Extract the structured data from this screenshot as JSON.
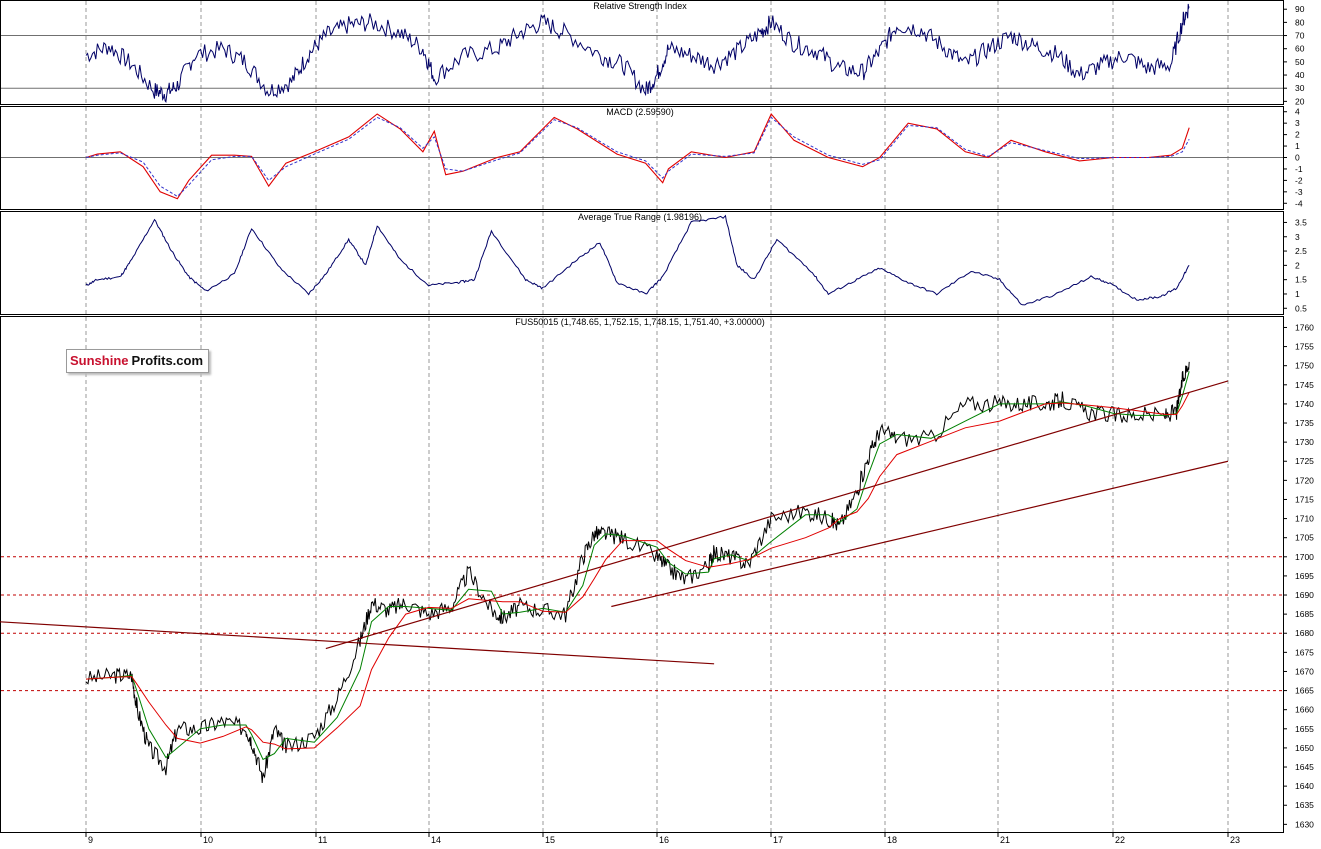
{
  "colors": {
    "price": "#000000",
    "ma_fast": "#008000",
    "ma_slow": "#e00000",
    "indicator": "#000066",
    "macd_signal": "#3333cc",
    "trendline": "#800000",
    "support": "#c00000",
    "grid": "#999999",
    "level": "#707070"
  },
  "logo": {
    "part1": "Sunshine",
    "part2": "Profits.com"
  },
  "x_axis": {
    "days": [
      "9",
      "10",
      "11",
      "14",
      "15",
      "16",
      "17",
      "18",
      "21",
      "22",
      "23"
    ]
  },
  "chart_data": [
    {
      "type": "line",
      "title": "Relative Strength Index",
      "ylim": [
        18,
        97
      ],
      "ticks": [
        20,
        30,
        40,
        50,
        60,
        70,
        80,
        90
      ],
      "levels": [
        30,
        70
      ],
      "x": [
        0,
        0.2,
        0.4,
        0.6,
        0.7,
        0.8,
        0.95,
        1.2,
        1.4,
        1.6,
        1.8,
        1.95,
        2.1,
        2.3,
        2.5,
        2.75,
        2.95,
        3.05,
        3.3,
        3.6,
        3.8,
        4.0,
        4.2,
        4.5,
        4.7,
        4.9,
        5.0,
        5.1,
        5.3,
        5.5,
        5.7,
        5.9,
        6.0,
        6.2,
        6.4,
        6.6,
        6.8,
        6.95,
        7.1,
        7.3,
        7.5,
        7.7,
        7.9,
        8.1,
        8.3,
        8.5,
        8.7,
        8.9,
        9.1,
        9.3,
        9.5,
        9.6,
        9.66
      ],
      "values": [
        55,
        62,
        48,
        28,
        26,
        32,
        55,
        60,
        50,
        28,
        35,
        56,
        70,
        78,
        80,
        72,
        60,
        38,
        54,
        60,
        72,
        80,
        72,
        55,
        48,
        28,
        40,
        60,
        55,
        48,
        58,
        72,
        80,
        64,
        58,
        45,
        42,
        58,
        78,
        75,
        62,
        48,
        60,
        70,
        62,
        56,
        40,
        48,
        55,
        45,
        48,
        80,
        92
      ]
    },
    {
      "type": "line",
      "title": "MACD (2.59590)",
      "ylim": [
        -4.5,
        4.5
      ],
      "ticks": [
        -4,
        -3,
        -2,
        -1,
        0,
        1,
        2,
        3,
        4
      ],
      "levels": [
        0
      ],
      "x": [
        0,
        0.1,
        0.3,
        0.5,
        0.65,
        0.8,
        0.9,
        1.1,
        1.3,
        1.45,
        1.6,
        1.75,
        2.0,
        2.3,
        2.55,
        2.75,
        2.95,
        3.05,
        3.15,
        3.3,
        3.6,
        3.8,
        4.1,
        4.3,
        4.65,
        4.9,
        5.05,
        5.1,
        5.3,
        5.6,
        5.85,
        6.0,
        6.2,
        6.5,
        6.8,
        6.95,
        7.2,
        7.45,
        7.7,
        7.9,
        8.1,
        8.4,
        8.7,
        9.0,
        9.3,
        9.5,
        9.6,
        9.66
      ],
      "series": [
        {
          "name": "MACD",
          "values": [
            0,
            0.3,
            0.5,
            -0.8,
            -3,
            -3.6,
            -2,
            0.2,
            0.2,
            0.1,
            -2.5,
            -0.5,
            0.5,
            1.8,
            3.8,
            2.5,
            0.5,
            2.3,
            -1.5,
            -1.2,
            0,
            0.5,
            3.5,
            2.5,
            0.3,
            -0.5,
            -2.2,
            -1,
            0.5,
            0,
            0.5,
            3.8,
            1.5,
            0,
            -0.8,
            0,
            3,
            2.5,
            0.5,
            0,
            1.5,
            0.5,
            -0.3,
            0,
            0,
            0.2,
            0.8,
            2.6
          ]
        },
        {
          "name": "Signal",
          "values": [
            0,
            0.2,
            0.4,
            -0.4,
            -2.5,
            -3.4,
            -2.4,
            -0.2,
            0.1,
            0.1,
            -2.0,
            -0.8,
            0.3,
            1.6,
            3.5,
            2.6,
            0.8,
            1.8,
            -1.0,
            -1.2,
            -0.2,
            0.4,
            3.3,
            2.6,
            0.5,
            -0.3,
            -1.8,
            -1.2,
            0.3,
            0.1,
            0.4,
            3.5,
            1.8,
            0.2,
            -0.6,
            -0.2,
            2.8,
            2.6,
            0.7,
            0.1,
            1.3,
            0.6,
            -0.1,
            0,
            0,
            0.1,
            0.5,
            1.6
          ]
        }
      ]
    },
    {
      "type": "line",
      "title": "Average True Range (1.98196)",
      "ylim": [
        0.3,
        3.9
      ],
      "ticks": [
        0.5,
        1.0,
        1.5,
        2.0,
        2.5,
        3.0,
        3.5
      ],
      "x": [
        0,
        0.1,
        0.3,
        0.4,
        0.6,
        0.75,
        0.9,
        1.05,
        1.3,
        1.45,
        1.7,
        1.95,
        2.1,
        2.3,
        2.45,
        2.55,
        2.75,
        3.0,
        3.25,
        3.4,
        3.55,
        3.85,
        4.0,
        4.3,
        4.5,
        4.65,
        4.9,
        5.05,
        5.3,
        5.6,
        5.7,
        5.85,
        6.05,
        6.35,
        6.5,
        6.75,
        6.95,
        7.2,
        7.45,
        7.75,
        8.0,
        8.2,
        8.5,
        8.8,
        8.95,
        9.2,
        9.4,
        9.55,
        9.66
      ],
      "values": [
        1.3,
        1.5,
        1.6,
        2.2,
        3.6,
        2.5,
        1.6,
        1.1,
        1.7,
        3.3,
        1.9,
        1.0,
        1.7,
        2.9,
        2.0,
        3.4,
        2.2,
        1.3,
        1.4,
        1.5,
        3.2,
        1.5,
        1.2,
        2.2,
        2.8,
        1.4,
        1.0,
        1.6,
        3.5,
        3.7,
        2.0,
        1.5,
        2.9,
        1.8,
        1.0,
        1.5,
        1.9,
        1.4,
        1.0,
        1.8,
        1.5,
        0.6,
        1.0,
        1.6,
        1.4,
        0.8,
        0.9,
        1.2,
        2.0
      ]
    },
    {
      "type": "line",
      "title": "FUS50015 (1,748.65, 1,752.15, 1,748.15, 1,751.40, +3.00000)",
      "ylim": [
        1628,
        1763
      ],
      "ticks": [
        1630,
        1635,
        1640,
        1645,
        1650,
        1655,
        1660,
        1665,
        1670,
        1675,
        1680,
        1685,
        1690,
        1695,
        1700,
        1705,
        1710,
        1715,
        1720,
        1725,
        1730,
        1735,
        1740,
        1745,
        1750,
        1755,
        1760
      ],
      "support_levels": [
        1700,
        1690,
        1680,
        1665
      ],
      "x": [
        0,
        0.25,
        0.4,
        0.45,
        0.55,
        0.7,
        0.8,
        1.0,
        1.2,
        1.4,
        1.45,
        1.55,
        1.65,
        1.75,
        2.0,
        2.2,
        2.4,
        2.5,
        2.65,
        2.8,
        3.0,
        3.2,
        3.35,
        3.55,
        3.65,
        3.8,
        4.0,
        4.2,
        4.35,
        4.45,
        4.55,
        4.7,
        5.0,
        5.1,
        5.25,
        5.45,
        5.5,
        5.65,
        5.8,
        6.0,
        6.3,
        6.5,
        6.6,
        6.75,
        6.85,
        6.95,
        7.1,
        7.4,
        7.7,
        8.0,
        8.2,
        8.4,
        8.55,
        8.75,
        9.0,
        9.2,
        9.45,
        9.55,
        9.6,
        9.66
      ],
      "values": [
        1668,
        1669,
        1669,
        1660,
        1650,
        1645,
        1655,
        1655,
        1657,
        1655,
        1652,
        1642,
        1655,
        1650,
        1653,
        1663,
        1678,
        1688,
        1686,
        1688,
        1685,
        1687,
        1696,
        1686,
        1684,
        1687,
        1686,
        1685,
        1700,
        1706,
        1706,
        1705,
        1700,
        1697,
        1694,
        1698,
        1701,
        1700,
        1698,
        1710,
        1712,
        1710,
        1708,
        1717,
        1726,
        1733,
        1731,
        1731,
        1740,
        1740,
        1740,
        1740,
        1741,
        1738,
        1737,
        1737,
        1737,
        1738,
        1746,
        1751
      ]
    }
  ]
}
